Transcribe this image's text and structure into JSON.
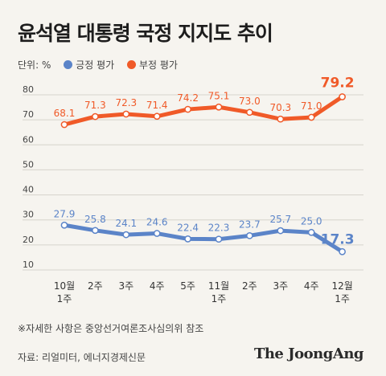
{
  "title": "윤석열 대통령 국정 지지도 추이",
  "unit_label": "단위: %",
  "footnote": "※자세한 사항은 중앙선거여론조사심의위 참조",
  "source": "자료: 리얼미터, 에너지경제신문",
  "brand": "The JoongAng",
  "colors": {
    "positive": "#5b84c8",
    "negative": "#f05a28",
    "grid": "#d6d3cc",
    "axis_text": "#444444"
  },
  "chart_data": {
    "type": "line",
    "title": "윤석열 대통령 국정 지지도 추이",
    "categories": [
      "10월 1주",
      "2주",
      "3주",
      "4주",
      "5주",
      "11월 1주",
      "2주",
      "3주",
      "4주",
      "12월 1주"
    ],
    "category_lines": [
      [
        "10월",
        "1주"
      ],
      [
        "2주"
      ],
      [
        "3주"
      ],
      [
        "4주"
      ],
      [
        "5주"
      ],
      [
        "11월",
        "1주"
      ],
      [
        "2주"
      ],
      [
        "3주"
      ],
      [
        "4주"
      ],
      [
        "12월",
        "1주"
      ]
    ],
    "yticks": [
      10,
      20,
      30,
      40,
      50,
      60,
      70,
      80
    ],
    "ylim": [
      10,
      80
    ],
    "grid": true,
    "legend_position": "top-left",
    "series": [
      {
        "name": "긍정 평가",
        "color": "#5b84c8",
        "values": [
          27.9,
          25.8,
          24.1,
          24.6,
          22.4,
          22.3,
          23.7,
          25.7,
          25.0,
          17.3
        ],
        "labels": [
          "27.9",
          "25.8",
          "24.1",
          "24.6",
          "22.4",
          "22.3",
          "23.7",
          "25.7",
          "25.0",
          "17.3"
        ]
      },
      {
        "name": "부정 평가",
        "color": "#f05a28",
        "values": [
          68.1,
          71.3,
          72.3,
          71.4,
          74.2,
          75.1,
          73.0,
          70.3,
          71.0,
          79.2
        ],
        "labels": [
          "68.1",
          "71.3",
          "72.3",
          "71.4",
          "74.2",
          "75.1",
          "73.0",
          "70.3",
          "71.0",
          "79.2"
        ]
      }
    ]
  }
}
